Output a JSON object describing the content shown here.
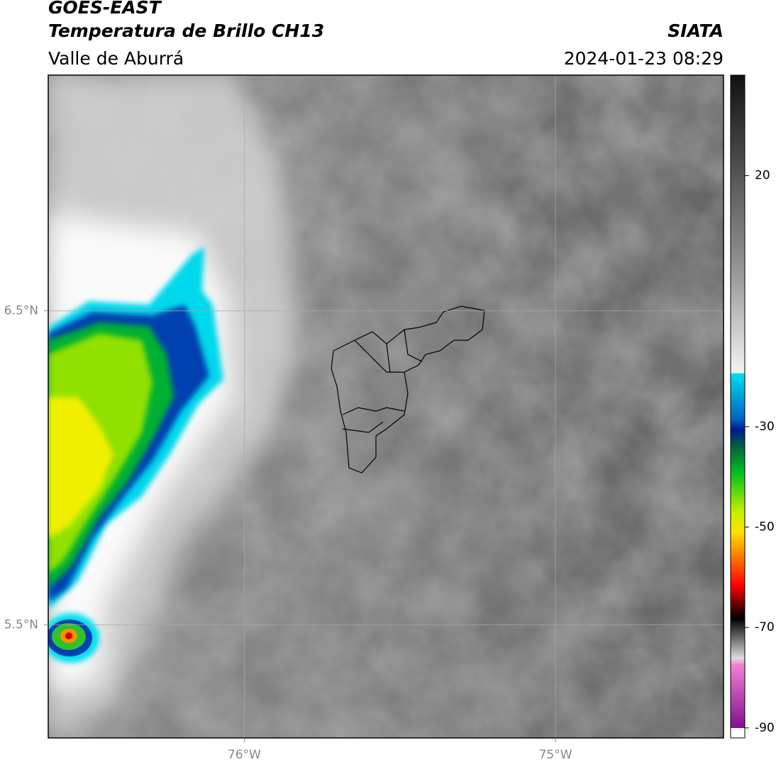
{
  "header": {
    "title": "GOES-EAST",
    "subtitle": "Temperatura de Brillo CH13",
    "region": "Valle de Aburrá",
    "source": "SIATA",
    "timestamp": "2024-01-23 08:29"
  },
  "map": {
    "xlim": [
      -76.63,
      -74.46
    ],
    "ylim": [
      5.14,
      7.25
    ],
    "xticks": [
      {
        "value": -76,
        "label": "76°W"
      },
      {
        "value": -75,
        "label": "75°W"
      }
    ],
    "yticks": [
      {
        "value": 6.5,
        "label": "6.5°N"
      },
      {
        "value": 5.5,
        "label": "5.5°N"
      }
    ],
    "grid": true
  },
  "colorbar": {
    "lim": [
      -92,
      40
    ],
    "ticks": [
      20,
      -30,
      -50,
      -70,
      -90
    ]
  }
}
